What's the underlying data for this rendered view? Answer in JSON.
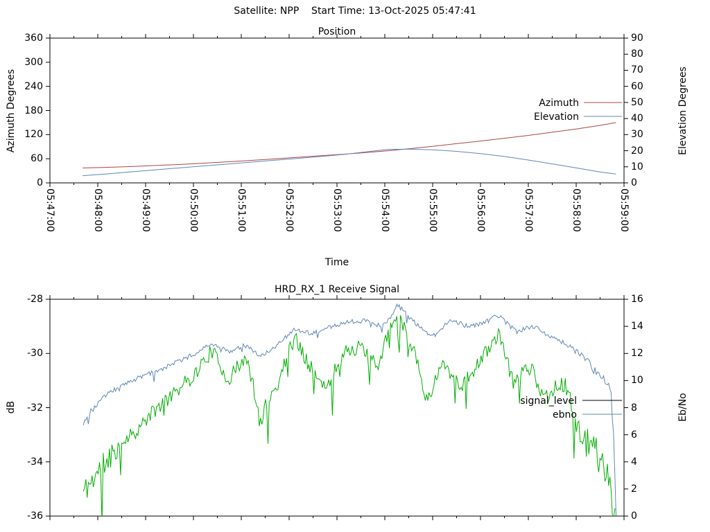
{
  "header": {
    "title": "Satellite: NPP    Start Time: 13-Oct-2025 05:47:41"
  },
  "colors": {
    "azimuth": "#b04341",
    "elevation": "#5e86b5",
    "signal_level_curve": "#00ad00",
    "signal_level_key": "#000000",
    "ebno": "#5e86b5",
    "axis": "#000000",
    "background": "#ffffff"
  },
  "chart_data": [
    {
      "id": "position",
      "type": "line",
      "title": "Position",
      "xlabel": "Time",
      "ylabel": "Azimuth Degrees",
      "y2label": "Elevation Degrees",
      "x_unit": "seconds since 05:47:00",
      "x_range_seconds": [
        0,
        720
      ],
      "x_tick_labels": [
        "05:47:00",
        "05:48:00",
        "05:49:00",
        "05:50:00",
        "05:51:00",
        "05:52:00",
        "05:53:00",
        "05:54:00",
        "05:55:00",
        "05:56:00",
        "05:57:00",
        "05:58:00",
        "05:59:00"
      ],
      "x_tick_labels_visible": true,
      "ylim": [
        0,
        360
      ],
      "y_ticks": [
        0,
        60,
        120,
        180,
        240,
        300,
        360
      ],
      "y2lim": [
        0,
        90
      ],
      "y2_ticks": [
        0,
        10,
        20,
        30,
        40,
        50,
        60,
        70,
        80,
        90
      ],
      "legend": [
        {
          "label": "Azimuth",
          "color": "#b04341"
        },
        {
          "label": "Elevation",
          "color": "#5e86b5"
        }
      ],
      "series": [
        {
          "name": "Azimuth",
          "axis": "y1",
          "color": "#b04341",
          "t": [
            41,
            70,
            100,
            130,
            160,
            190,
            220,
            250,
            280,
            310,
            340,
            370,
            400,
            424,
            450,
            480,
            510,
            540,
            570,
            600,
            630,
            660,
            690,
            710
          ],
          "v": [
            37,
            38.5,
            40.5,
            43,
            45.5,
            48.5,
            52,
            55.5,
            59.5,
            63.5,
            67.5,
            71.5,
            76,
            80,
            85,
            91,
            97.5,
            104,
            111,
            118,
            126,
            134,
            143,
            150
          ]
        },
        {
          "name": "Elevation",
          "axis": "y2",
          "color": "#5e86b5",
          "t": [
            41,
            70,
            100,
            130,
            160,
            190,
            220,
            250,
            280,
            310,
            340,
            370,
            400,
            424,
            450,
            480,
            510,
            540,
            570,
            600,
            630,
            660,
            690,
            710
          ],
          "v": [
            4.5,
            5.5,
            6.8,
            8,
            9.2,
            10.4,
            11.6,
            12.8,
            14,
            15.2,
            16.4,
            17.8,
            19.5,
            20.8,
            21,
            20.6,
            19.6,
            18.2,
            16.4,
            14.2,
            11.8,
            9.3,
            6.8,
            5.5
          ]
        }
      ]
    },
    {
      "id": "receive-signal",
      "type": "line",
      "title": "HRD_RX_1 Receive Signal",
      "xlabel": "",
      "ylabel": "dB",
      "y2label": "Eb/No",
      "x_unit": "seconds since 05:47:00",
      "x_range_seconds": [
        0,
        720
      ],
      "x_tick_labels": [
        "05:47:00",
        "05:48:00",
        "05:49:00",
        "05:50:00",
        "05:51:00",
        "05:52:00",
        "05:53:00",
        "05:54:00",
        "05:55:00",
        "05:56:00",
        "05:57:00",
        "05:58:00",
        "05:59:00"
      ],
      "x_tick_labels_visible": false,
      "ylim": [
        -36,
        -28
      ],
      "y_ticks": [
        -36,
        -34,
        -32,
        -30,
        -28
      ],
      "y2lim": [
        0,
        16
      ],
      "y2_ticks": [
        0,
        2,
        4,
        6,
        8,
        10,
        12,
        14,
        16
      ],
      "legend": [
        {
          "label": "signal_level",
          "color": "#000000"
        },
        {
          "label": "ebno",
          "color": "#5e86b5"
        }
      ],
      "series": [
        {
          "name": "signal_level",
          "axis": "y1",
          "color": "#00ad00",
          "t": [
            42,
            55,
            70,
            85,
            100,
            111,
            125,
            146,
            165,
            181,
            195,
            203,
            215,
            224,
            235,
            246,
            255,
            263,
            272,
            285,
            296,
            307,
            316,
            324,
            335,
            346,
            357,
            368,
            380,
            390,
            400,
            411,
            424,
            436,
            447,
            459,
            472,
            483,
            494,
            505,
            516,
            527,
            537,
            550,
            562,
            572,
            581,
            592,
            603,
            614,
            624,
            635,
            646,
            655,
            663,
            672,
            681,
            690,
            698,
            704,
            710
          ],
          "v": [
            -35.1,
            -34.6,
            -34.0,
            -33.4,
            -33.0,
            -32.8,
            -32.3,
            -31.7,
            -31.2,
            -30.8,
            -30.2,
            -29.9,
            -30.5,
            -31.0,
            -30.5,
            -30.2,
            -31.2,
            -32.6,
            -31.8,
            -31.2,
            -30.2,
            -29.4,
            -29.9,
            -30.3,
            -30.9,
            -31.4,
            -30.6,
            -30.0,
            -29.8,
            -29.8,
            -30.1,
            -30.5,
            -29.3,
            -28.4,
            -29.3,
            -30.0,
            -31.8,
            -31.0,
            -30.3,
            -30.8,
            -31.2,
            -30.8,
            -30.4,
            -29.8,
            -29.3,
            -30.1,
            -31.1,
            -30.6,
            -30.5,
            -31.3,
            -31.6,
            -31.1,
            -31.2,
            -32.0,
            -32.8,
            -33.2,
            -33.3,
            -34.0,
            -34.2,
            -35.0,
            -36.4
          ],
          "noise": {
            "amp": 0.28,
            "spike_prob": 0.06,
            "spike_amp": 1.5,
            "start_boost_until": 85,
            "start_boost": 1.7,
            "end_boost_from": 640,
            "end_boost": 2.4,
            "seed": 11
          }
        },
        {
          "name": "ebno",
          "axis": "y2",
          "color": "#5e86b5",
          "t": [
            42,
            55,
            68,
            80,
            94,
            107,
            120,
            133,
            146,
            159,
            172,
            188,
            203,
            215,
            224,
            235,
            246,
            255,
            263,
            274,
            285,
            296,
            307,
            318,
            329,
            340,
            350,
            361,
            372,
            383,
            394,
            405,
            416,
            426,
            436,
            447,
            459,
            470,
            481,
            492,
            503,
            514,
            524,
            535,
            546,
            555,
            563,
            574,
            585,
            596,
            607,
            618,
            629,
            640,
            650,
            661,
            672,
            681,
            690,
            698,
            703,
            707,
            710
          ],
          "v": [
            6.9,
            8.0,
            8.8,
            9.3,
            9.8,
            10.1,
            10.4,
            10.7,
            11.0,
            11.4,
            11.7,
            12.2,
            12.8,
            12.4,
            12.1,
            12.4,
            12.7,
            12.2,
            11.8,
            12.2,
            12.6,
            13.2,
            13.8,
            13.6,
            13.5,
            13.7,
            13.9,
            14.1,
            14.3,
            14.4,
            14.4,
            14.2,
            14.0,
            14.6,
            15.6,
            14.9,
            14.2,
            13.7,
            13.3,
            13.9,
            14.4,
            14.2,
            14.0,
            14.1,
            14.3,
            14.6,
            14.8,
            14.2,
            13.6,
            13.8,
            14.0,
            13.6,
            13.2,
            12.9,
            12.6,
            12.1,
            11.6,
            10.9,
            10.3,
            9.9,
            9.7,
            6.0,
            0.0
          ],
          "noise": {
            "amp": 0.17,
            "spike_prob": 0.03,
            "spike_amp": 0.8,
            "start_boost_until": 60,
            "start_boost": 1.4,
            "end_boost_from": 655,
            "end_boost": 2.8,
            "seed": 23
          }
        }
      ]
    }
  ]
}
